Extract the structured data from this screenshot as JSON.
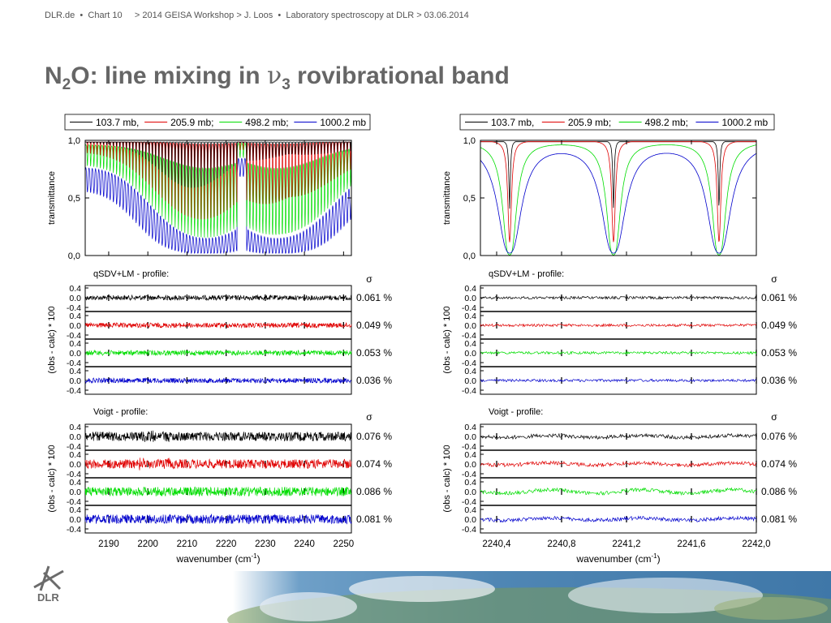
{
  "header": {
    "site": "DLR.de",
    "sep": "•",
    "chart": "Chart 10",
    "path": "> 2014 GEISA Workshop > J. Loos",
    "sep2": "•",
    "subpath": "Laboratory spectroscopy at DLR > 03.06.2014"
  },
  "slide_title": {
    "pre": "N",
    "sub1": "2",
    "mid": "O: line mixing in ",
    "nu": "ν",
    "sub2": "3",
    "post": " rovibrational band"
  },
  "logo_text": "DLR",
  "colors": {
    "black": "#000000",
    "red": "#e00000",
    "green": "#00dd00",
    "blue": "#0000cc"
  },
  "chart_data": [
    {
      "type": "line",
      "panel": "left",
      "legend": [
        "103.7 mb,",
        "205.9 mb;",
        "498.2 mb;",
        "1000.2 mb"
      ],
      "top": {
        "ylabel": "transmittance",
        "yticks": [
          "1,0",
          "0,5",
          "0,0"
        ],
        "ylim": [
          0,
          1
        ],
        "xlim": [
          2184,
          2252
        ],
        "band_center": 2224,
        "line_spacing": 0.83
      },
      "residual_groups": [
        {
          "label": "qSDV+LM - profile:",
          "sigma_label": "σ",
          "sigma_values": [
            "0.061 %",
            "0.049 %",
            "0.053 %",
            "0.036 %"
          ]
        },
        {
          "label": "Voigt - profile:",
          "sigma_label": "σ",
          "sigma_values": [
            "0.076 %",
            "0.074 %",
            "0.086 %",
            "0.081 %"
          ]
        }
      ],
      "residual_ylabel": "(obs - calc) * 100",
      "residual_ticks": [
        "0.4",
        "0.0",
        "-0.4"
      ],
      "xticks": [
        "2190",
        "2200",
        "2210",
        "2220",
        "2230",
        "2240",
        "2250"
      ],
      "xtick_values": [
        2190,
        2200,
        2210,
        2220,
        2230,
        2240,
        2250
      ],
      "xlabel": "wavenumber (cm",
      "xlabel_sup": "-1",
      "xlabel_end": ")"
    },
    {
      "type": "line",
      "panel": "right",
      "legend": [
        "103.7 mb,",
        "205.9 mb;",
        "498.2 mb;",
        "1000.2 mb"
      ],
      "top": {
        "ylabel": "transmittance",
        "yticks": [
          "1,0",
          "0,5",
          "0,0"
        ],
        "ylim": [
          0,
          1
        ],
        "xlim": [
          2240.3,
          2242.0
        ],
        "line_centers": [
          2240.48,
          2241.12,
          2241.77
        ],
        "hwhm": [
          0.00425,
          0.0081,
          0.0195,
          0.0395
        ]
      },
      "residual_groups": [
        {
          "label": "qSDV+LM - profile:",
          "sigma_label": "σ",
          "sigma_values": [
            "0.061 %",
            "0.049 %",
            "0.053 %",
            "0.036 %"
          ]
        },
        {
          "label": "Voigt - profile:",
          "sigma_label": "σ",
          "sigma_values": [
            "0.076 %",
            "0.074 %",
            "0.086 %",
            "0.081 %"
          ]
        }
      ],
      "residual_ylabel": "(obs - calc) * 100",
      "residual_ticks": [
        "0.4",
        "0.0",
        "-0.4"
      ],
      "xticks": [
        "2240,4",
        "2240,8",
        "2241,2",
        "2241,6",
        "2242,0"
      ],
      "xtick_values": [
        2240.4,
        2240.8,
        2241.2,
        2241.6,
        2242.0
      ],
      "xlabel": "wavenumber (cm",
      "xlabel_sup": "-1",
      "xlabel_end": ")"
    }
  ]
}
